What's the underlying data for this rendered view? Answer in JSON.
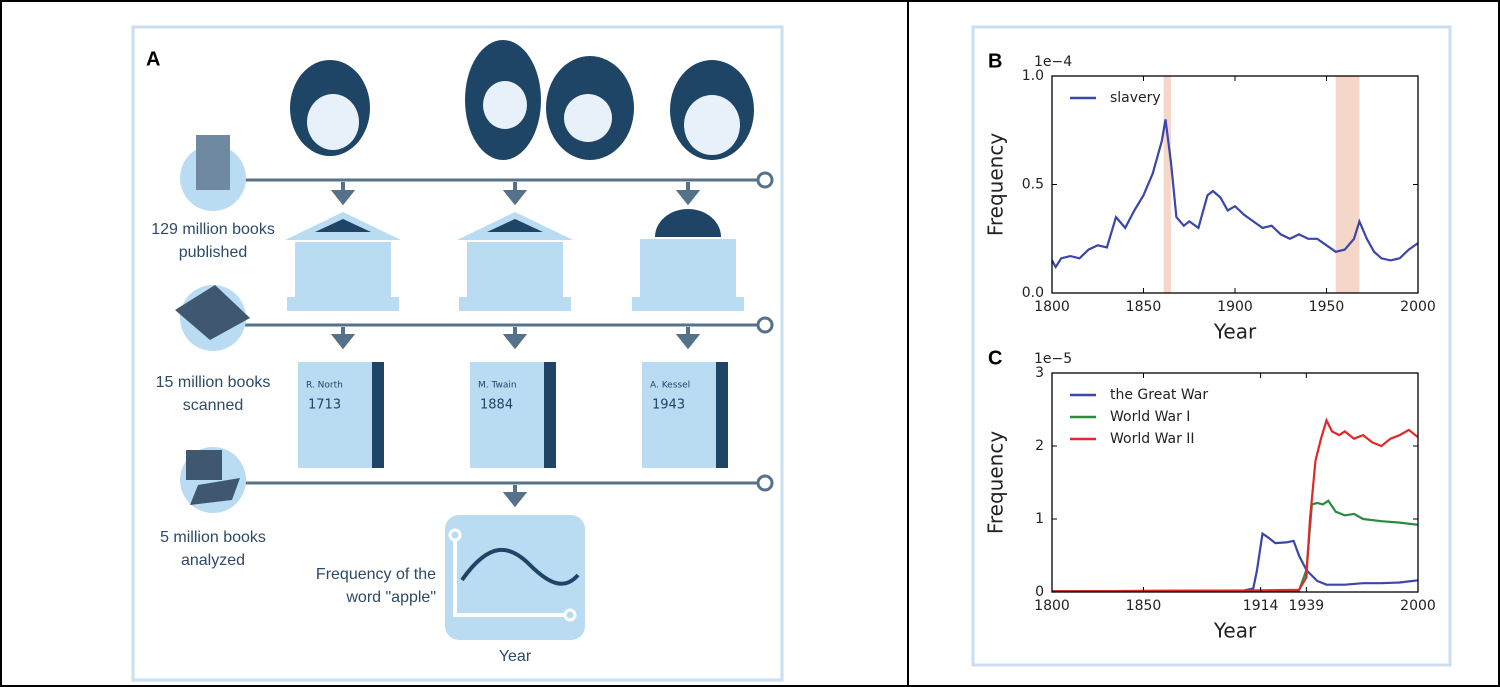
{
  "panel_a": {
    "label": "A",
    "steps": [
      [
        "129 million books",
        "published"
      ],
      [
        "15 million books",
        "scanned"
      ],
      [
        "5 million books",
        "analyzed"
      ]
    ],
    "books": [
      {
        "author": "R. North",
        "year": "1713"
      },
      {
        "author": "M. Twain",
        "year": "1884"
      },
      {
        "author": "A. Kessel",
        "year": "1943"
      }
    ],
    "chart_caption": [
      "Frequency of the",
      "word \"apple\""
    ],
    "chart_xlabel": "Year"
  },
  "chart_data": [
    {
      "type": "line",
      "panel_label": "B",
      "y_offset_label": "1e−4",
      "xlabel": "Year",
      "ylabel": "Frequency",
      "xlim": [
        1800,
        2000
      ],
      "xticks": [
        1800,
        1850,
        1900,
        1950,
        2000
      ],
      "ylim": [
        0,
        1.0
      ],
      "yticks": [
        {
          "value": 0,
          "label": "0.0"
        },
        {
          "value": 0.5,
          "label": "0.5"
        },
        {
          "value": 1.0,
          "label": "1.0"
        }
      ],
      "highlight_spans": [
        [
          1861,
          1865
        ],
        [
          1955,
          1968
        ]
      ],
      "highlight_color": "#f3cdbd",
      "series": [
        {
          "name": "slavery",
          "color": "#3a46a8",
          "x": [
            1800,
            1802,
            1805,
            1810,
            1815,
            1820,
            1825,
            1830,
            1835,
            1840,
            1845,
            1850,
            1855,
            1860,
            1862,
            1865,
            1868,
            1872,
            1875,
            1880,
            1885,
            1888,
            1892,
            1896,
            1900,
            1905,
            1910,
            1915,
            1920,
            1925,
            1930,
            1935,
            1940,
            1945,
            1950,
            1955,
            1960,
            1965,
            1968,
            1972,
            1976,
            1980,
            1985,
            1990,
            1995,
            2000
          ],
          "values": [
            0.15,
            0.12,
            0.16,
            0.17,
            0.16,
            0.2,
            0.22,
            0.21,
            0.35,
            0.3,
            0.38,
            0.45,
            0.55,
            0.7,
            0.8,
            0.6,
            0.35,
            0.31,
            0.33,
            0.3,
            0.45,
            0.47,
            0.44,
            0.38,
            0.4,
            0.36,
            0.33,
            0.3,
            0.31,
            0.27,
            0.25,
            0.27,
            0.25,
            0.25,
            0.22,
            0.19,
            0.2,
            0.25,
            0.33,
            0.25,
            0.19,
            0.16,
            0.15,
            0.16,
            0.2,
            0.23
          ]
        }
      ]
    },
    {
      "type": "line",
      "panel_label": "C",
      "y_offset_label": "1e−5",
      "xlabel": "Year",
      "ylabel": "Frequency",
      "xlim": [
        1800,
        2000
      ],
      "xticks": [
        1800,
        1850,
        1914,
        1939,
        2000
      ],
      "ylim": [
        0,
        3
      ],
      "yticks": [
        0,
        1,
        2,
        3
      ],
      "series": [
        {
          "name": "the Great War",
          "color": "#3a46a8",
          "x": [
            1800,
            1905,
            1910,
            1912,
            1915,
            1918,
            1922,
            1928,
            1932,
            1935,
            1939,
            1945,
            1950,
            1960,
            1970,
            1980,
            1990,
            2000
          ],
          "values": [
            0.01,
            0.02,
            0.05,
            0.3,
            0.8,
            0.75,
            0.67,
            0.68,
            0.7,
            0.5,
            0.3,
            0.15,
            0.1,
            0.1,
            0.12,
            0.12,
            0.13,
            0.16
          ]
        },
        {
          "name": "World War I",
          "color": "#2a8a3e",
          "x": [
            1800,
            1935,
            1939,
            1942,
            1945,
            1948,
            1951,
            1955,
            1960,
            1965,
            1970,
            1980,
            1990,
            2000
          ],
          "values": [
            0.01,
            0.02,
            0.3,
            1.2,
            1.22,
            1.2,
            1.25,
            1.1,
            1.05,
            1.07,
            1.0,
            0.97,
            0.95,
            0.92
          ]
        },
        {
          "name": "World War II",
          "color": "#e0282b",
          "x": [
            1800,
            1910,
            1935,
            1939,
            1941,
            1944,
            1947,
            1950,
            1953,
            1957,
            1960,
            1965,
            1970,
            1975,
            1980,
            1985,
            1990,
            1995,
            2000
          ],
          "values": [
            0.01,
            0.02,
            0.03,
            0.2,
            1.0,
            1.8,
            2.1,
            2.35,
            2.2,
            2.15,
            2.2,
            2.1,
            2.15,
            2.05,
            2.0,
            2.1,
            2.15,
            2.22,
            2.12
          ]
        }
      ]
    }
  ]
}
